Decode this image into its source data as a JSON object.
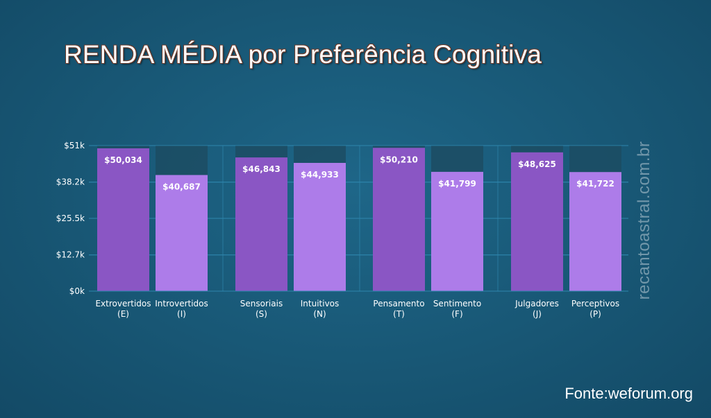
{
  "title": "RENDA MÉDIA por Preferência Cognitiva",
  "watermark": "recantoastral.com.br",
  "source": "Fonte:weforum.org",
  "colors": {
    "bar_primary": "#8a56c4",
    "bar_secondary": "#ad7ce9",
    "bar_background": "#1c4c63",
    "gridline": "#2e86ad",
    "axis_text": "#ffffff"
  },
  "chart_data": {
    "type": "bar",
    "categories": [
      [
        "Extrovertidos",
        "(E)"
      ],
      [
        "Introvertidos",
        "(I)"
      ],
      [
        "Sensoriais",
        "(S)"
      ],
      [
        "Intuitivos",
        "(N)"
      ],
      [
        "Pensamento",
        "(T)"
      ],
      [
        "Sentimento",
        "(F)"
      ],
      [
        "Julgadores",
        "(J)"
      ],
      [
        "Perceptivos",
        "(P)"
      ]
    ],
    "values": [
      50034,
      40687,
      46843,
      44933,
      50210,
      41799,
      48625,
      41722
    ],
    "value_labels": [
      "$50,034",
      "$40,687",
      "$46,843",
      "$44,933",
      "$50,210",
      "$41,799",
      "$48,625",
      "$41,722"
    ],
    "groups": [
      [
        0,
        1
      ],
      [
        2,
        3
      ],
      [
        4,
        5
      ],
      [
        6,
        7
      ]
    ],
    "ylim": [
      0,
      51000
    ],
    "yticks": [
      0,
      12700,
      25500,
      38200,
      51000
    ],
    "ytick_labels": [
      "$0k",
      "$12.7k",
      "$25.5k",
      "$38.2k",
      "$51k"
    ],
    "xlabel": "",
    "ylabel": "",
    "grid": true,
    "legend": "none"
  }
}
